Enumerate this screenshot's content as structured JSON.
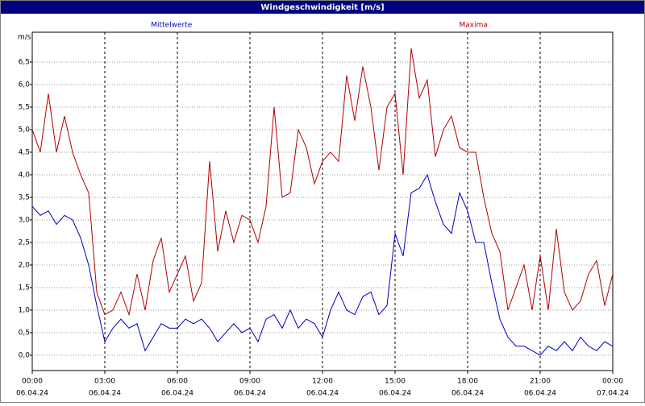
{
  "chart_data": {
    "type": "line",
    "title": "Windgeschwindigkeit [m/s]",
    "y_label": "m/s",
    "x": [
      0,
      20,
      40,
      60,
      80,
      100,
      120,
      140,
      160,
      180,
      200,
      220,
      240,
      260,
      280,
      300,
      320,
      340,
      360,
      380,
      400,
      420,
      440,
      460,
      480,
      500,
      520,
      540,
      560,
      580,
      600,
      620,
      640,
      660,
      680,
      700,
      720,
      740,
      760,
      780,
      800,
      820,
      840,
      860,
      880,
      900,
      920,
      940,
      960,
      980,
      1000,
      1020,
      1040,
      1060,
      1080,
      1100,
      1120,
      1140,
      1160,
      1180,
      1200,
      1220,
      1240,
      1260,
      1280,
      1300,
      1320,
      1340,
      1360,
      1380,
      1400,
      1420,
      1440
    ],
    "series": [
      {
        "name": "Mittelwerte",
        "color": "#0000c0",
        "values": [
          3.3,
          3.1,
          3.2,
          2.9,
          3.1,
          3.0,
          2.6,
          2.0,
          1.1,
          0.3,
          0.6,
          0.8,
          0.6,
          0.7,
          0.1,
          0.4,
          0.7,
          0.6,
          0.6,
          0.8,
          0.7,
          0.8,
          0.6,
          0.3,
          0.5,
          0.7,
          0.5,
          0.6,
          0.3,
          0.8,
          0.9,
          0.6,
          1.0,
          0.6,
          0.8,
          0.7,
          0.4,
          1.0,
          1.4,
          1.0,
          0.9,
          1.3,
          1.4,
          0.9,
          1.1,
          2.7,
          2.2,
          3.6,
          3.7,
          4.0,
          3.4,
          2.9,
          2.7,
          3.6,
          3.2,
          2.5,
          2.5,
          1.6,
          0.8,
          0.4,
          0.2,
          0.2,
          0.1,
          0.0,
          0.2,
          0.1,
          0.3,
          0.1,
          0.4,
          0.2,
          0.1,
          0.3,
          0.2
        ]
      },
      {
        "name": "Maxima",
        "color": "#b00000",
        "values": [
          5.0,
          4.5,
          5.8,
          4.5,
          5.3,
          4.5,
          4.0,
          3.6,
          1.4,
          0.9,
          1.0,
          1.4,
          0.9,
          1.8,
          1.0,
          2.1,
          2.6,
          1.4,
          1.8,
          2.2,
          1.2,
          1.6,
          4.3,
          2.3,
          3.2,
          2.5,
          3.1,
          3.0,
          2.5,
          3.3,
          5.5,
          3.5,
          3.6,
          5.0,
          4.6,
          3.8,
          4.3,
          4.5,
          4.3,
          6.2,
          5.2,
          6.4,
          5.5,
          4.1,
          5.5,
          5.8,
          4.0,
          6.8,
          5.7,
          6.1,
          4.4,
          5.0,
          5.3,
          4.6,
          4.5,
          4.5,
          3.5,
          2.7,
          2.3,
          1.0,
          1.5,
          2.0,
          1.0,
          2.2,
          1.0,
          2.8,
          1.4,
          1.0,
          1.2,
          1.8,
          2.1,
          1.1,
          1.8
        ]
      }
    ],
    "xlim": [
      0,
      1440
    ],
    "xticks": [
      {
        "value": 0,
        "label": "00:00"
      },
      {
        "value": 180,
        "label": "03:00"
      },
      {
        "value": 360,
        "label": "06:00"
      },
      {
        "value": 540,
        "label": "09:00"
      },
      {
        "value": 720,
        "label": "12:00"
      },
      {
        "value": 900,
        "label": "15:00"
      },
      {
        "value": 1080,
        "label": "18:00"
      },
      {
        "value": 1260,
        "label": "21:00"
      },
      {
        "value": 1440,
        "label": "00:00"
      }
    ],
    "xtick_dates": [
      "06.04.24",
      "06.04.24",
      "06.04.24",
      "06.04.24",
      "06.04.24",
      "06.04.24",
      "06.04.24",
      "06.04.24",
      "07.04.24"
    ],
    "ylim": [
      -0.34,
      7.16
    ],
    "yticks": [
      {
        "value": 0,
        "label": "0,0"
      },
      {
        "value": 0.5,
        "label": "0,5"
      },
      {
        "value": 1,
        "label": "1,0"
      },
      {
        "value": 1.5,
        "label": "1,5"
      },
      {
        "value": 2,
        "label": "2,0"
      },
      {
        "value": 2.5,
        "label": "2,5"
      },
      {
        "value": 3,
        "label": "3,0"
      },
      {
        "value": 3.5,
        "label": "3,5"
      },
      {
        "value": 4,
        "label": "4,0"
      },
      {
        "value": 4.5,
        "label": "4,5"
      },
      {
        "value": 5,
        "label": "5,0"
      },
      {
        "value": 5.5,
        "label": "5,5"
      },
      {
        "value": 6,
        "label": "6,0"
      },
      {
        "value": 6.5,
        "label": "6,5"
      }
    ],
    "grid": true
  }
}
